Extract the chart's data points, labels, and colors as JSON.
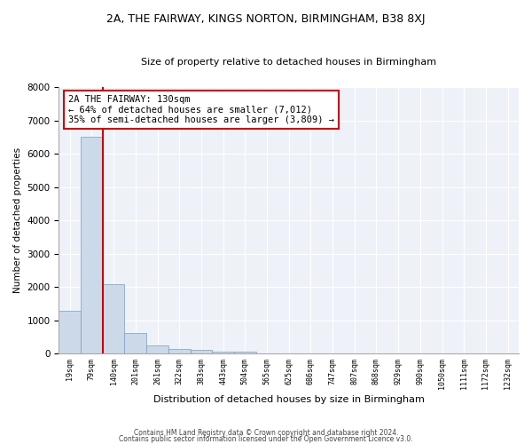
{
  "title_line1": "2A, THE FAIRWAY, KINGS NORTON, BIRMINGHAM, B38 8XJ",
  "title_line2": "Size of property relative to detached houses in Birmingham",
  "xlabel": "Distribution of detached houses by size in Birmingham",
  "ylabel": "Number of detached properties",
  "footnote1": "Contains HM Land Registry data © Crown copyright and database right 2024.",
  "footnote2": "Contains public sector information licensed under the Open Government Licence v3.0.",
  "annotation_title": "2A THE FAIRWAY: 130sqm",
  "annotation_line2": "← 64% of detached houses are smaller (7,012)",
  "annotation_line3": "35% of semi-detached houses are larger (3,809) →",
  "property_size_sqm": 130,
  "bar_color": "#ccd9e8",
  "bar_edge_color": "#7a9cbf",
  "marker_line_color": "#cc0000",
  "annotation_box_edge": "#cc0000",
  "background_color": "#eef2f8",
  "categories": [
    "19sqm",
    "79sqm",
    "140sqm",
    "201sqm",
    "261sqm",
    "322sqm",
    "383sqm",
    "443sqm",
    "504sqm",
    "565sqm",
    "625sqm",
    "686sqm",
    "747sqm",
    "807sqm",
    "868sqm",
    "929sqm",
    "990sqm",
    "1050sqm",
    "1111sqm",
    "1172sqm",
    "1232sqm"
  ],
  "values": [
    1280,
    6500,
    2080,
    620,
    250,
    130,
    100,
    60,
    60,
    0,
    0,
    0,
    0,
    0,
    0,
    0,
    0,
    0,
    0,
    0,
    0
  ],
  "ylim": [
    0,
    8000
  ],
  "yticks": [
    0,
    1000,
    2000,
    3000,
    4000,
    5000,
    6000,
    7000,
    8000
  ]
}
